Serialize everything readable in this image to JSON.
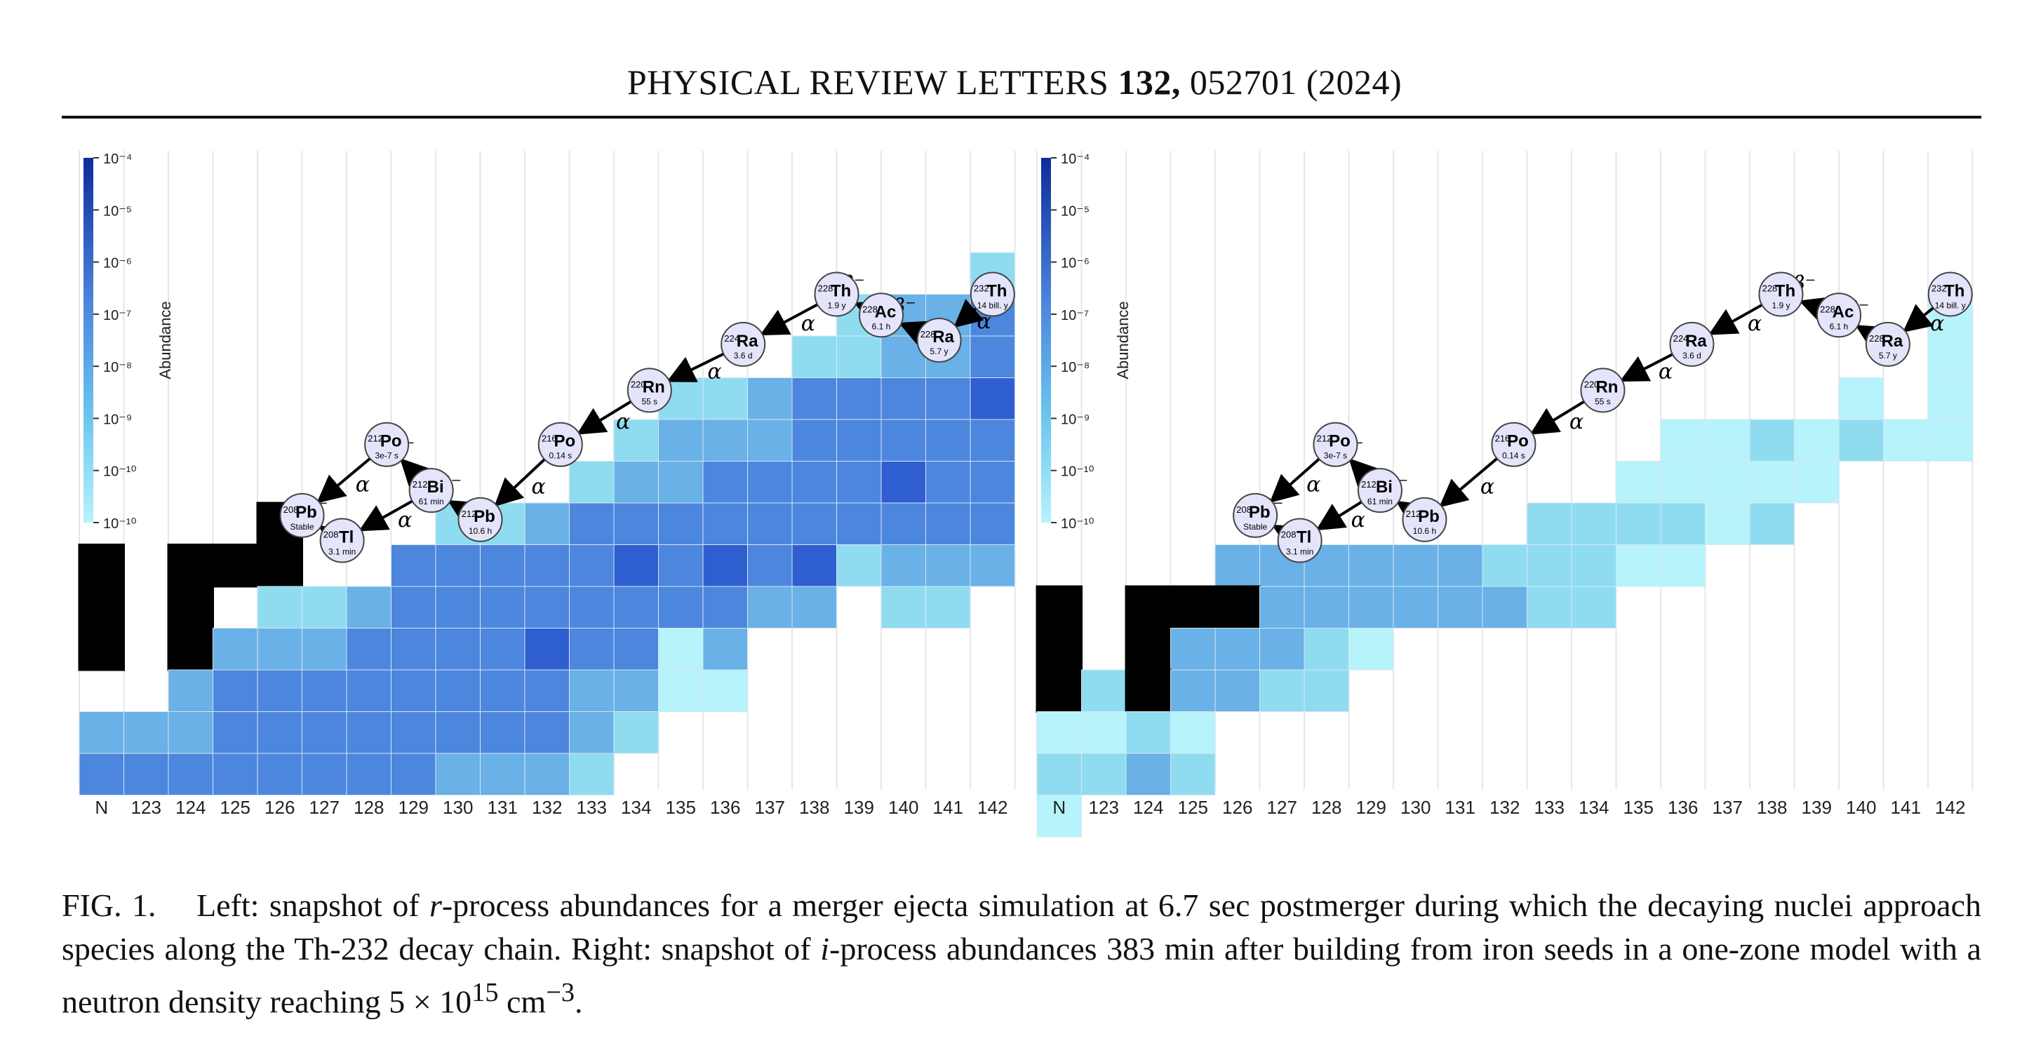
{
  "header": {
    "journal": "PHYSICAL REVIEW LETTERS",
    "volume": "132,",
    "article": "052701 (2024)"
  },
  "colorbar": {
    "label": "Abundance",
    "ticks": [
      "10⁻⁴",
      "10⁻⁵",
      "10⁻⁶",
      "10⁻⁷",
      "10⁻⁸",
      "10⁻⁹",
      "10⁻¹⁰",
      "10⁻¹⁰"
    ],
    "colors": [
      "#0d2c9c",
      "#2f5ed0",
      "#4c86dd",
      "#69b1e6",
      "#8fdcf0",
      "#b6f3fb"
    ]
  },
  "x_axis": {
    "first_label": "N",
    "labels": [
      "N",
      "123",
      "124",
      "125",
      "126",
      "127",
      "128",
      "129",
      "130",
      "131",
      "132",
      "133",
      "134",
      "135",
      "136",
      "137",
      "138",
      "139",
      "140",
      "141",
      "142"
    ]
  },
  "nuclei": [
    {
      "id": "th232",
      "mass": "232",
      "sym": "Th",
      "hl": "14 bill. y"
    },
    {
      "id": "ra228",
      "mass": "228",
      "sym": "Ra",
      "hl": "5.7 y"
    },
    {
      "id": "ac228",
      "mass": "228",
      "sym": "Ac",
      "hl": "6.1 h"
    },
    {
      "id": "th228",
      "mass": "228",
      "sym": "Th",
      "hl": "1.9 y"
    },
    {
      "id": "ra224",
      "mass": "224",
      "sym": "Ra",
      "hl": "3.6 d"
    },
    {
      "id": "rn220",
      "mass": "220",
      "sym": "Rn",
      "hl": "55 s"
    },
    {
      "id": "po216",
      "mass": "216",
      "sym": "Po",
      "hl": "0.14 s"
    },
    {
      "id": "pb212",
      "mass": "212",
      "sym": "Pb",
      "hl": "10.6 h"
    },
    {
      "id": "bi212",
      "mass": "212",
      "sym": "Bi",
      "hl": "61 min"
    },
    {
      "id": "po212",
      "mass": "212",
      "sym": "Po",
      "hl": "3e-7 s"
    },
    {
      "id": "tl208",
      "mass": "208",
      "sym": "Tl",
      "hl": "3.1 min"
    },
    {
      "id": "pb208",
      "mass": "208",
      "sym": "Pb",
      "hl": "Stable"
    }
  ],
  "decay_labels": {
    "alpha": "α",
    "beta": "β⁻"
  },
  "panels": [
    {
      "name": "left",
      "grid": [
        [
          0,
          0,
          0,
          0,
          0,
          0,
          0,
          0,
          0,
          0,
          0,
          0,
          0,
          0,
          0,
          0,
          0,
          0,
          0,
          0,
          4
        ],
        [
          0,
          0,
          0,
          0,
          0,
          0,
          0,
          0,
          0,
          0,
          0,
          0,
          0,
          0,
          0,
          0,
          0,
          4,
          3,
          3,
          2
        ],
        [
          0,
          0,
          0,
          0,
          0,
          0,
          0,
          0,
          0,
          0,
          0,
          0,
          0,
          0,
          0,
          0,
          4,
          4,
          3,
          3,
          2
        ],
        [
          0,
          0,
          0,
          0,
          0,
          0,
          0,
          0,
          0,
          0,
          0,
          0,
          0,
          4,
          4,
          3,
          2,
          2,
          2,
          2,
          1
        ],
        [
          0,
          0,
          0,
          0,
          0,
          0,
          0,
          0,
          0,
          0,
          0,
          0,
          4,
          3,
          3,
          3,
          2,
          2,
          2,
          2,
          2
        ],
        [
          0,
          0,
          0,
          0,
          0,
          0,
          0,
          0,
          0,
          0,
          0,
          4,
          3,
          3,
          2,
          2,
          2,
          2,
          1,
          2,
          2
        ],
        [
          0,
          0,
          0,
          0,
          9,
          0,
          0,
          0,
          4,
          4,
          3,
          2,
          2,
          2,
          2,
          2,
          2,
          2,
          2,
          2,
          2
        ],
        [
          9,
          0,
          9,
          9,
          9,
          0,
          0,
          2,
          2,
          2,
          2,
          2,
          1,
          2,
          1,
          2,
          1,
          4,
          3,
          3,
          3
        ],
        [
          9,
          0,
          9,
          0,
          4,
          4,
          3,
          2,
          2,
          2,
          2,
          2,
          2,
          2,
          2,
          3,
          3,
          0,
          4,
          4,
          0
        ],
        [
          9,
          0,
          9,
          3,
          3,
          3,
          2,
          2,
          2,
          2,
          1,
          2,
          2,
          5,
          3,
          0,
          0,
          0,
          0,
          0,
          0
        ],
        [
          0,
          0,
          3,
          2,
          2,
          2,
          2,
          2,
          2,
          2,
          2,
          3,
          3,
          5,
          5,
          0,
          0,
          0,
          0,
          0,
          0
        ],
        [
          3,
          3,
          3,
          2,
          2,
          2,
          2,
          2,
          2,
          2,
          2,
          3,
          4,
          0,
          0,
          0,
          0,
          0,
          0,
          0,
          0
        ],
        [
          2,
          2,
          2,
          2,
          2,
          2,
          2,
          2,
          3,
          3,
          3,
          4,
          0,
          0,
          0,
          0,
          0,
          0,
          0,
          0,
          0
        ]
      ],
      "blackbox": [
        [
          7,
          0
        ],
        [
          8,
          0
        ],
        [
          9,
          0
        ],
        [
          7,
          2
        ],
        [
          8,
          2
        ],
        [
          9,
          2
        ],
        [
          7,
          3
        ],
        [
          7,
          4
        ],
        [
          6,
          4
        ]
      ]
    },
    {
      "name": "right",
      "grid": [
        [
          0,
          0,
          0,
          0,
          0,
          0,
          0,
          0,
          0,
          0,
          0,
          0,
          0,
          0,
          0,
          0,
          0,
          0,
          0,
          0,
          0
        ],
        [
          0,
          0,
          0,
          0,
          0,
          0,
          0,
          0,
          0,
          0,
          0,
          0,
          0,
          0,
          0,
          0,
          0,
          0,
          0,
          0,
          5
        ],
        [
          0,
          0,
          0,
          0,
          0,
          0,
          0,
          0,
          0,
          0,
          0,
          0,
          0,
          0,
          0,
          0,
          0,
          0,
          0,
          0,
          5
        ],
        [
          0,
          0,
          0,
          0,
          0,
          0,
          0,
          0,
          0,
          0,
          0,
          0,
          0,
          0,
          0,
          0,
          0,
          0,
          5,
          0,
          5
        ],
        [
          0,
          0,
          0,
          0,
          0,
          0,
          0,
          0,
          0,
          0,
          0,
          0,
          0,
          0,
          5,
          5,
          4,
          5,
          4,
          5,
          5
        ],
        [
          0,
          0,
          0,
          0,
          0,
          0,
          0,
          0,
          0,
          0,
          0,
          0,
          0,
          5,
          5,
          5,
          5,
          5,
          0,
          0,
          0
        ],
        [
          0,
          0,
          0,
          0,
          0,
          0,
          0,
          0,
          0,
          0,
          0,
          4,
          4,
          4,
          4,
          5,
          4,
          0,
          0,
          0,
          0
        ],
        [
          0,
          0,
          0,
          0,
          3,
          3,
          3,
          3,
          3,
          3,
          4,
          4,
          4,
          5,
          5,
          0,
          0,
          0,
          0,
          0,
          0
        ],
        [
          9,
          0,
          9,
          9,
          9,
          3,
          3,
          3,
          3,
          3,
          3,
          4,
          4,
          0,
          0,
          0,
          0,
          0,
          0,
          0,
          0
        ],
        [
          9,
          0,
          9,
          3,
          3,
          3,
          4,
          5,
          0,
          0,
          0,
          0,
          0,
          0,
          0,
          0,
          0,
          0,
          0,
          0,
          0
        ],
        [
          9,
          4,
          9,
          3,
          3,
          4,
          4,
          0,
          0,
          0,
          0,
          0,
          0,
          0,
          0,
          0,
          0,
          0,
          0,
          0,
          0
        ],
        [
          5,
          5,
          4,
          5,
          0,
          0,
          0,
          0,
          0,
          0,
          0,
          0,
          0,
          0,
          0,
          0,
          0,
          0,
          0,
          0,
          0
        ],
        [
          4,
          4,
          3,
          4,
          0,
          0,
          0,
          0,
          0,
          0,
          0,
          0,
          0,
          0,
          0,
          0,
          0,
          0,
          0,
          0,
          0
        ],
        [
          5,
          0,
          0,
          0,
          0,
          0,
          0,
          0,
          0,
          0,
          0,
          0,
          0,
          0,
          0,
          0,
          0,
          0,
          0,
          0,
          0
        ]
      ],
      "blackbox": [
        [
          8,
          0
        ],
        [
          9,
          0
        ],
        [
          10,
          0
        ],
        [
          8,
          2
        ],
        [
          9,
          2
        ],
        [
          10,
          2
        ],
        [
          8,
          3
        ],
        [
          8,
          4
        ],
        [
          7,
          4
        ]
      ]
    }
  ],
  "caption": {
    "fig": "FIG. 1.",
    "t1": "Left: snapshot of",
    "r": "r",
    "t2": "-process abundances for a merger ejecta simulation at 6.7 sec postmerger during which the decaying nuclei approach species along the Th-232 decay chain. Right: snapshot of",
    "i": "i",
    "t3": "-process abundances 383 min after building from iron seeds in a one-zone model with a neutron density reaching 5 × 10",
    "exp": "15",
    "t4": " cm",
    "exp2": "−3",
    "t5": "."
  }
}
